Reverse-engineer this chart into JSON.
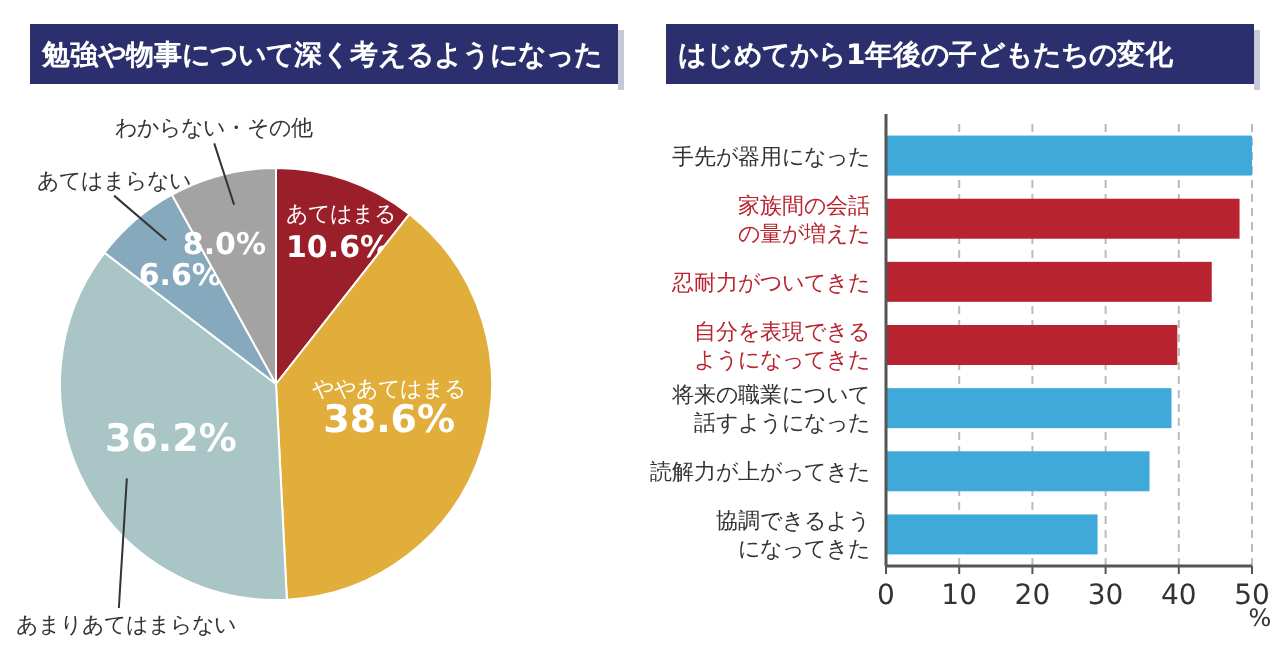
{
  "chart_data": [
    {
      "type": "pie",
      "title": "勉強や物事について深く考えるようになった",
      "categories": [
        "あてはまる",
        "ややあてはまる",
        "あまりあてはまらない",
        "あてはまらない",
        "わからない・その他"
      ],
      "values": [
        10.6,
        38.6,
        36.2,
        6.6,
        8.0
      ],
      "colors": [
        "#9b1f2b",
        "#e2ae3b",
        "#a9c5c5",
        "#86a9bd",
        "#a3a3a3"
      ],
      "value_labels": [
        "10.6%",
        "38.6%",
        "36.2%",
        "6.6%",
        "8.0%"
      ]
    },
    {
      "type": "bar",
      "orientation": "horizontal",
      "title": "はじめてから1年後の子どもたちの変化",
      "categories": [
        "手先が器用になった",
        "家族間の会話の量が増えた",
        "忍耐力がついてきた",
        "自分を表現できるようになってきた",
        "将来の職業について話すようになった",
        "読解力が上がってきた",
        "協調できるようになってきた"
      ],
      "values": [
        50,
        48.3,
        44.5,
        39.8,
        39.0,
        36.0,
        28.9
      ],
      "colors": [
        "#3fa9d9",
        "#b8232f",
        "#b8232f",
        "#b8232f",
        "#3fa9d9",
        "#3fa9d9",
        "#3fa9d9"
      ],
      "xlim": [
        0,
        50
      ],
      "xticks": [
        0,
        10,
        20,
        30,
        40,
        50
      ],
      "xlabel": "%",
      "grid": "x"
    }
  ]
}
